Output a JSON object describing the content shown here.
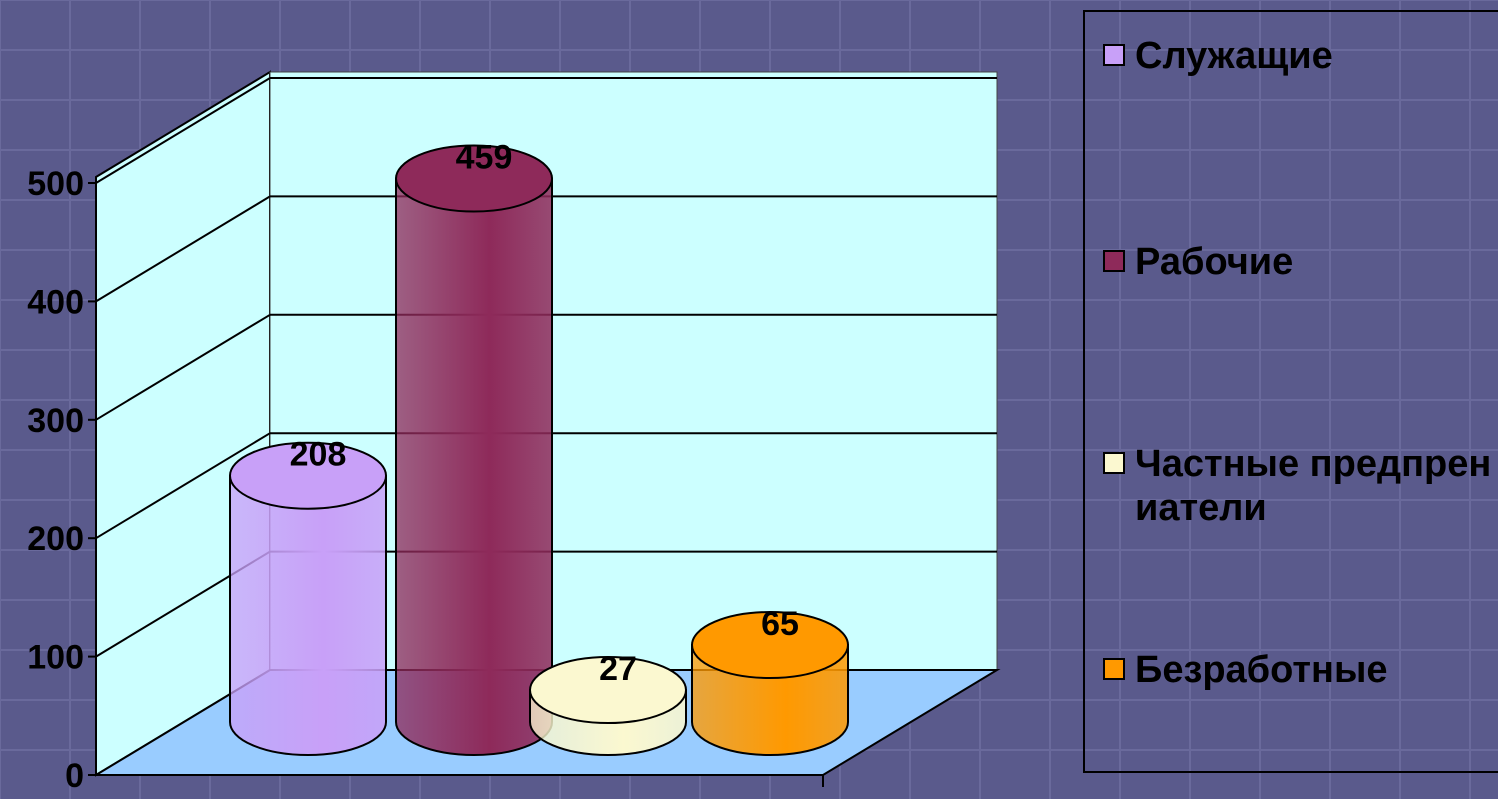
{
  "chart_data": {
    "type": "bar",
    "categories": [
      "Служащие",
      "Рабочие",
      "Частные предпрениатели",
      "Безработные"
    ],
    "values": [
      208,
      459,
      27,
      65
    ],
    "data_labels": [
      "208",
      "459",
      "27",
      "65"
    ],
    "yticks": [
      "0",
      "100",
      "200",
      "300",
      "400",
      "500"
    ],
    "ylim": [
      0,
      500
    ],
    "grid": true,
    "legend_position": "right",
    "style": "3d-cylinder",
    "colors": {
      "series": [
        "#c8a0f8",
        "#8e2a5a",
        "#fbf8d0",
        "#ff9900"
      ],
      "wall": "#ccffff",
      "floor": "#99ccff",
      "background": "#5a5a8c"
    }
  },
  "legend": {
    "items": [
      {
        "label": "Служащие",
        "color": "#c8a0f8"
      },
      {
        "label": "Рабочие",
        "color": "#8e2a5a"
      },
      {
        "label": "Частные предпрениатели",
        "color": "#fbf8d0"
      },
      {
        "label": "Безработные",
        "color": "#ff9900"
      }
    ]
  }
}
